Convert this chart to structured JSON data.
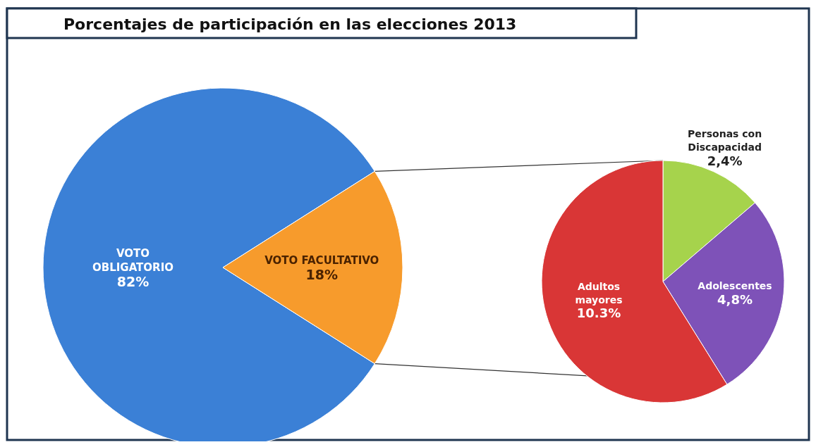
{
  "chart_data": [
    {
      "type": "pie",
      "title": "Porcentajes de participación en las elecciones 2013",
      "categories": [
        "VOTO OBLIGATORIO",
        "VOTO FACULTATIVO"
      ],
      "values": [
        82,
        18
      ],
      "colors": [
        "#3b80d6",
        "#f79b2c"
      ],
      "value_labels": [
        "82%",
        "18%"
      ]
    },
    {
      "type": "pie",
      "categories": [
        "Personas con Discapacidad",
        "Adolescentes",
        "Adultos mayores"
      ],
      "values": [
        2.4,
        4.8,
        10.3
      ],
      "colors": [
        "#a6d34c",
        "#7e52b8",
        "#d93636"
      ],
      "value_labels": [
        "2,4%",
        "4,8%",
        "10.3%"
      ]
    }
  ]
}
